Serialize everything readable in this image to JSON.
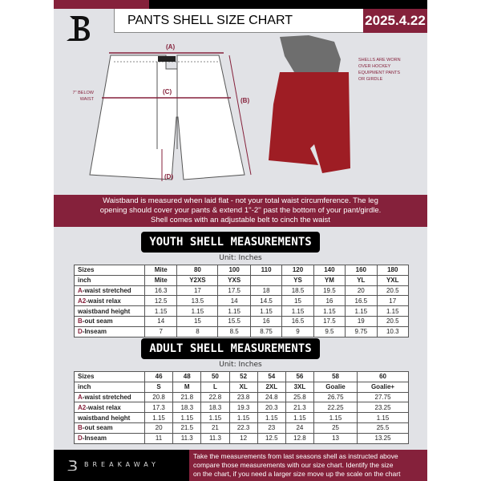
{
  "header": {
    "title": "PANTS SHELL SIZE CHART",
    "date": "2025.4.22"
  },
  "diagram": {
    "labels": {
      "a": "(A)",
      "b": "(B)",
      "c": "(C)",
      "d": "(D)"
    },
    "below_waist_note": [
      "7'' BELOW",
      "WAIST"
    ],
    "worn_note": [
      "SHELLS ARE WORN",
      "OVER HOCKEY",
      "EQUIPMENT PANTS",
      "OR GIRDLE"
    ]
  },
  "instructions": [
    "Waistband is measured when laid flat - not your total waist circumference. The leg",
    "opening should cover your pants & extend 1''-2'' past the bottom of your pant/girdle.",
    "Shell comes with an adjustable belt to cinch the waist"
  ],
  "youth": {
    "title": "YOUTH SHELL MEASUREMENTS",
    "unit": "Unit: Inches",
    "rows": [
      {
        "prefix": "",
        "label": "Sizes",
        "values": [
          "Mite",
          "80",
          "100",
          "110",
          "120",
          "140",
          "160",
          "180"
        ]
      },
      {
        "prefix": "",
        "label": "inch",
        "values": [
          "Mite",
          "Y2XS",
          "YXS",
          "",
          "YS",
          "YM",
          "YL",
          "YXL"
        ]
      },
      {
        "prefix": "A",
        "label": "-waist stretched",
        "values": [
          "16.3",
          "17",
          "17.5",
          "18",
          "18.5",
          "19.5",
          "20",
          "20.5"
        ]
      },
      {
        "prefix": "A2",
        "label": "-waist relax",
        "values": [
          "12.5",
          "13.5",
          "14",
          "14.5",
          "15",
          "16",
          "16.5",
          "17"
        ]
      },
      {
        "prefix": "",
        "label": "waistband height",
        "values": [
          "1.15",
          "1.15",
          "1.15",
          "1.15",
          "1.15",
          "1.15",
          "1.15",
          "1.15"
        ]
      },
      {
        "prefix": "B",
        "label": "-out seam",
        "values": [
          "14",
          "15",
          "15.5",
          "16",
          "16.5",
          "17.5",
          "19",
          "20.5"
        ]
      },
      {
        "prefix": "D",
        "label": "-Inseam",
        "values": [
          "7",
          "8",
          "8.5",
          "8.75",
          "9",
          "9.5",
          "9.75",
          "10.3"
        ]
      }
    ]
  },
  "adult": {
    "title": "ADULT SHELL MEASUREMENTS",
    "unit": "Unit: Inches",
    "rows": [
      {
        "prefix": "",
        "label": "Sizes",
        "values": [
          "46",
          "48",
          "50",
          "52",
          "54",
          "56",
          "58",
          "60"
        ]
      },
      {
        "prefix": "",
        "label": "inch",
        "values": [
          "S",
          "M",
          "L",
          "XL",
          "2XL",
          "3XL",
          "Goalie",
          "Goalie+"
        ]
      },
      {
        "prefix": "A",
        "label": "-waist stretched",
        "values": [
          "20.8",
          "21.8",
          "22.8",
          "23.8",
          "24.8",
          "25.8",
          "26.75",
          "27.75"
        ]
      },
      {
        "prefix": "A2",
        "label": "-waist relax",
        "values": [
          "17.3",
          "18.3",
          "18.3",
          "19.3",
          "20.3",
          "21.3",
          "22.25",
          "23.25"
        ]
      },
      {
        "prefix": "",
        "label": "waistband height",
        "values": [
          "1.15",
          "1.15",
          "1.15",
          "1.15",
          "1.15",
          "1.15",
          "1.15",
          "1.15"
        ]
      },
      {
        "prefix": "B",
        "label": "-out seam",
        "values": [
          "20",
          "21.5",
          "21",
          "22.3",
          "23",
          "24",
          "25",
          "25.5"
        ]
      },
      {
        "prefix": "D",
        "label": "-Inseam",
        "values": [
          "11",
          "11.3",
          "11.3",
          "12",
          "12.5",
          "12.8",
          "13",
          "13.25"
        ]
      }
    ]
  },
  "footer": {
    "brand": "BREAKAWAY",
    "text": [
      "Take the measurements from last seasons shell as instructed above",
      "compare those measurements  with our size chart. Identify the size",
      "on the chart, if you need a larger size move up the scale on the chart"
    ]
  },
  "colors": {
    "brand": "#85213b",
    "background": "#e1e2e6"
  }
}
